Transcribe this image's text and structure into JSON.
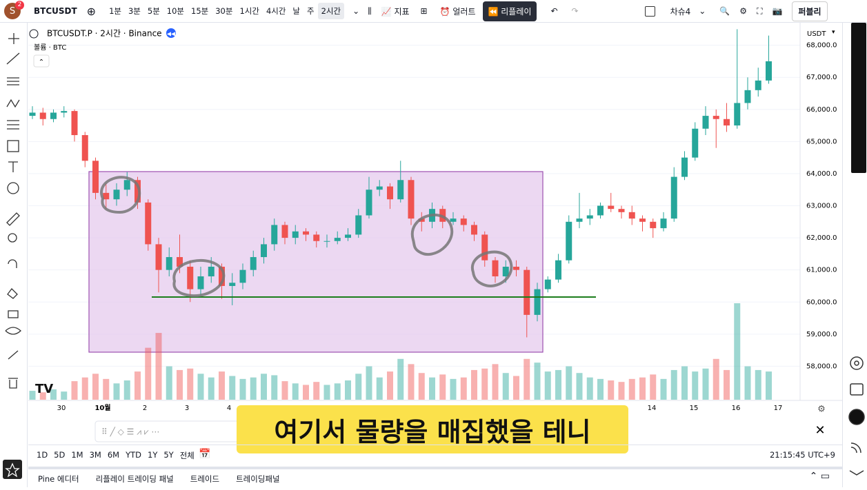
{
  "toolbar": {
    "avatar": "S",
    "badge": "2",
    "symbol": "BTCUSDT",
    "intervals": [
      "1분",
      "3분",
      "5분",
      "10분",
      "15분",
      "30분",
      "1시간",
      "4시간",
      "날",
      "주",
      "2시간"
    ],
    "indicators": "지표",
    "alert": "얼러트",
    "replay": "리플레이",
    "layout": "차슈4",
    "publish": "퍼블리"
  },
  "chart_data": {
    "type": "candlestick",
    "legend": "BTCUSDT.P · 2시간 · Binance",
    "volume_legend": "볼륨 · BTC",
    "currency": "USDT",
    "ylim": [
      57000,
      68700
    ],
    "yticks": [
      {
        "value": 58000,
        "label": "58,000.0"
      },
      {
        "value": 59000,
        "label": "59,000.0"
      },
      {
        "value": 60000,
        "label": "60,000.0"
      },
      {
        "value": 61000,
        "label": "61,000.0"
      },
      {
        "value": 62000,
        "label": "62,000.0"
      },
      {
        "value": 63000,
        "label": "63,000.0"
      },
      {
        "value": 64000,
        "label": "64,000.0"
      },
      {
        "value": 65000,
        "label": "65,000.0"
      },
      {
        "value": 66000,
        "label": "66,000.0"
      },
      {
        "value": 67000,
        "label": "67,000.0"
      },
      {
        "value": 68000,
        "label": "68,000.0"
      }
    ],
    "grid": true,
    "up_color": "#26a69a",
    "down_color": "#ef5350",
    "date_labels": [
      "30",
      "10월",
      "2",
      "3",
      "4",
      "14",
      "15",
      "16",
      "17"
    ],
    "candles": [
      [
        65800,
        66100,
        65700,
        65900
      ],
      [
        65900,
        66050,
        65500,
        65700
      ],
      [
        65700,
        66000,
        65600,
        65900
      ],
      [
        65900,
        66100,
        65750,
        65950
      ],
      [
        65950,
        66000,
        65000,
        65200
      ],
      [
        65200,
        65300,
        64200,
        64400
      ],
      [
        64400,
        64500,
        63200,
        63400
      ],
      [
        63400,
        63700,
        62900,
        63200
      ],
      [
        63200,
        63700,
        63000,
        63500
      ],
      [
        63500,
        64050,
        63300,
        63800
      ],
      [
        63800,
        63900,
        62900,
        63100
      ],
      [
        63100,
        63200,
        61600,
        61800
      ],
      [
        61800,
        62000,
        60300,
        61000
      ],
      [
        61000,
        61700,
        60800,
        61400
      ],
      [
        61400,
        62100,
        60900,
        61100
      ],
      [
        61100,
        61300,
        60000,
        60400
      ],
      [
        60400,
        61100,
        60200,
        60800
      ],
      [
        60800,
        61400,
        60600,
        61100
      ],
      [
        61100,
        61200,
        60100,
        60500
      ],
      [
        60500,
        60900,
        59900,
        60600
      ],
      [
        60600,
        61200,
        60400,
        61000
      ],
      [
        61000,
        61600,
        60800,
        61400
      ],
      [
        61400,
        62000,
        61200,
        61800
      ],
      [
        61800,
        62600,
        61600,
        62400
      ],
      [
        62400,
        62500,
        61800,
        62000
      ],
      [
        62000,
        62400,
        61800,
        62200
      ],
      [
        62200,
        62300,
        61900,
        62100
      ],
      [
        62100,
        62200,
        61700,
        61900
      ],
      [
        61900,
        62100,
        61700,
        61900
      ],
      [
        61900,
        62200,
        61800,
        62000
      ],
      [
        62000,
        62300,
        61900,
        62100
      ],
      [
        62100,
        62900,
        62000,
        62700
      ],
      [
        62700,
        63900,
        62600,
        63500
      ],
      [
        63500,
        63800,
        63300,
        63600
      ],
      [
        63600,
        63700,
        62900,
        63200
      ],
      [
        63200,
        64400,
        63100,
        63800
      ],
      [
        63800,
        63900,
        62400,
        62600
      ],
      [
        62600,
        62800,
        62200,
        62500
      ],
      [
        62500,
        63100,
        62300,
        62900
      ],
      [
        62900,
        63000,
        62300,
        62500
      ],
      [
        62500,
        62800,
        62400,
        62600
      ],
      [
        62600,
        62700,
        62200,
        62400
      ],
      [
        62400,
        62500,
        61900,
        62100
      ],
      [
        62100,
        62200,
        61100,
        61300
      ],
      [
        61300,
        61400,
        60600,
        60800
      ],
      [
        60800,
        61300,
        60600,
        61100
      ],
      [
        61100,
        61300,
        60800,
        61000
      ],
      [
        61000,
        61100,
        58900,
        59600
      ],
      [
        59600,
        60600,
        59400,
        60400
      ],
      [
        60400,
        60800,
        60300,
        60700
      ],
      [
        60700,
        61500,
        60600,
        61300
      ],
      [
        61300,
        62700,
        61200,
        62500
      ],
      [
        62500,
        63400,
        62300,
        62600
      ],
      [
        62600,
        62900,
        62400,
        62700
      ],
      [
        62700,
        63100,
        62600,
        63000
      ],
      [
        63000,
        63400,
        62800,
        62900
      ],
      [
        62900,
        63000,
        62600,
        62800
      ],
      [
        62800,
        63000,
        62400,
        62600
      ],
      [
        62600,
        62700,
        62200,
        62500
      ],
      [
        62500,
        62600,
        62000,
        62300
      ],
      [
        62300,
        62800,
        62200,
        62600
      ],
      [
        62600,
        64200,
        62500,
        63900
      ],
      [
        63900,
        64700,
        63800,
        64500
      ],
      [
        64500,
        65600,
        64400,
        65400
      ],
      [
        65400,
        66100,
        65200,
        65800
      ],
      [
        65800,
        66000,
        64800,
        65700
      ],
      [
        65700,
        66200,
        65300,
        65500
      ],
      [
        65500,
        68500,
        65400,
        66200
      ],
      [
        66200,
        67000,
        66000,
        66600
      ],
      [
        66600,
        67300,
        66400,
        66900
      ],
      [
        66900,
        68300,
        66800,
        67500
      ]
    ],
    "volumes": [
      12,
      10,
      14,
      11,
      25,
      30,
      35,
      28,
      22,
      26,
      38,
      70,
      90,
      45,
      40,
      42,
      35,
      30,
      38,
      32,
      28,
      30,
      35,
      33,
      25,
      22,
      20,
      24,
      20,
      22,
      26,
      35,
      45,
      30,
      38,
      55,
      48,
      36,
      30,
      34,
      28,
      30,
      40,
      42,
      48,
      36,
      32,
      55,
      50,
      38,
      40,
      45,
      36,
      30,
      28,
      26,
      24,
      28,
      30,
      34,
      28,
      40,
      45,
      38,
      42,
      55,
      40,
      130,
      45,
      40,
      38
    ]
  },
  "timeframes": [
    "1D",
    "5D",
    "1M",
    "3M",
    "6M",
    "YTD",
    "1Y",
    "5Y",
    "전체"
  ],
  "clock": "21:15:45 UTC+9",
  "tabs": [
    "Pine 에디터",
    "리플레이 트레이딩 패널",
    "트레이드",
    "트레이딩패널"
  ],
  "caption": "여기서 물량을 매집했을 테니"
}
